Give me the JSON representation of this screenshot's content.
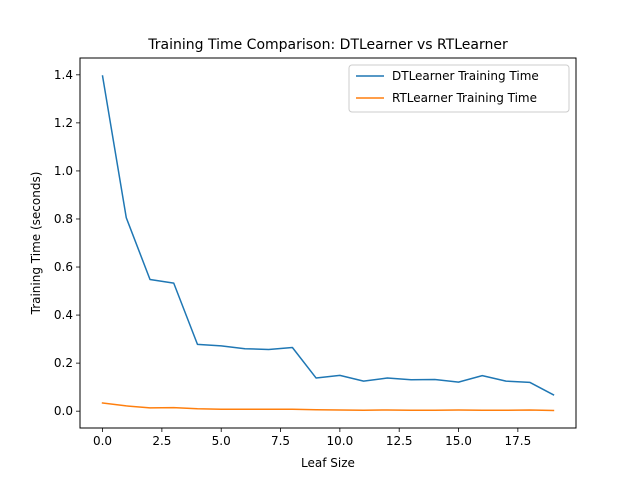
{
  "chart_data": {
    "type": "line",
    "title": "Training Time Comparison: DTLearner vs RTLearner",
    "xlabel": "Leaf Size",
    "ylabel": "Training Time (seconds)",
    "xlim": [
      -0.95,
      19.95
    ],
    "ylim": [
      -0.07,
      1.47
    ],
    "xticks": [
      0.0,
      2.5,
      5.0,
      7.5,
      10.0,
      12.5,
      15.0,
      17.5
    ],
    "xtick_labels": [
      "0.0",
      "2.5",
      "5.0",
      "7.5",
      "10.0",
      "12.5",
      "15.0",
      "17.5"
    ],
    "yticks": [
      0.0,
      0.2,
      0.4,
      0.6,
      0.8,
      1.0,
      1.2,
      1.4
    ],
    "ytick_labels": [
      "0.0",
      "0.2",
      "0.4",
      "0.6",
      "0.8",
      "1.0",
      "1.2",
      "1.4"
    ],
    "grid": false,
    "legend_position": "top-right",
    "x": [
      0,
      1,
      2,
      3,
      4,
      5,
      6,
      7,
      8,
      9,
      10,
      11,
      12,
      13,
      14,
      15,
      16,
      17,
      18,
      19
    ],
    "series": [
      {
        "name": "DTLearner Training Time",
        "color": "#1f77b4",
        "values": [
          1.395,
          0.805,
          0.548,
          0.533,
          0.278,
          0.272,
          0.26,
          0.257,
          0.265,
          0.138,
          0.149,
          0.125,
          0.138,
          0.131,
          0.132,
          0.121,
          0.148,
          0.125,
          0.12,
          0.068
        ]
      },
      {
        "name": "RTLearner Training Time",
        "color": "#ff7f0e",
        "values": [
          0.034,
          0.022,
          0.014,
          0.015,
          0.01,
          0.008,
          0.008,
          0.008,
          0.008,
          0.006,
          0.005,
          0.004,
          0.005,
          0.004,
          0.004,
          0.005,
          0.004,
          0.004,
          0.005,
          0.003
        ]
      }
    ]
  }
}
